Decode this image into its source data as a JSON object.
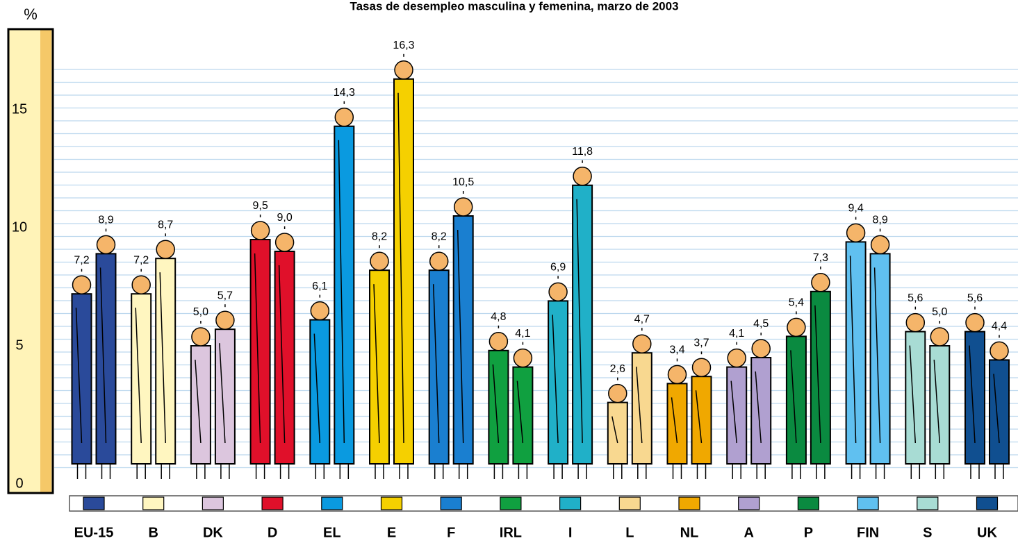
{
  "chart_data": {
    "type": "bar",
    "title": "Tasas de desempleo masculina y femenina, marzo de 2003",
    "y_label": "%",
    "categories": [
      "EU-15",
      "B",
      "DK",
      "D",
      "EL",
      "E",
      "F",
      "IRL",
      "I",
      "L",
      "NL",
      "A",
      "P",
      "FIN",
      "S",
      "UK"
    ],
    "colors": [
      "#2a4a9a",
      "#fff6c0",
      "#dcc6de",
      "#e0102a",
      "#0a9ae0",
      "#f5d000",
      "#1a7fd0",
      "#10a040",
      "#20b0c8",
      "#f8d890",
      "#f0a800",
      "#b0a0d0",
      "#0a8a40",
      "#60c0f0",
      "#a8dcd4",
      "#104f90"
    ],
    "series": [
      {
        "values": [
          7.2,
          7.2,
          5.0,
          9.5,
          6.1,
          8.2,
          8.2,
          4.8,
          6.9,
          2.6,
          3.4,
          4.1,
          5.4,
          9.4,
          5.6,
          5.6
        ],
        "value_labels": [
          "7,2",
          "7,2",
          "5,0",
          "9,5",
          "6,1",
          "8,2",
          "8,2",
          "4,8",
          "6,9",
          "2,6",
          "3,4",
          "4,1",
          "5,4",
          "9,4",
          "5,6",
          "5,6"
        ]
      },
      {
        "values": [
          8.9,
          8.7,
          5.7,
          9.0,
          14.3,
          16.3,
          10.5,
          4.1,
          11.8,
          4.7,
          3.7,
          4.5,
          7.3,
          8.9,
          5.0,
          4.4
        ],
        "value_labels": [
          "8,9",
          "8,7",
          "5,7",
          "9,0",
          "14,3",
          "16,3",
          "10,5",
          "4,1",
          "11,8",
          "4,7",
          "3,7",
          "4,5",
          "7,3",
          "8,9",
          "5,0",
          "4,4"
        ]
      }
    ],
    "ylim": [
      0,
      17
    ],
    "yticks": [
      0,
      5,
      10,
      15
    ]
  }
}
